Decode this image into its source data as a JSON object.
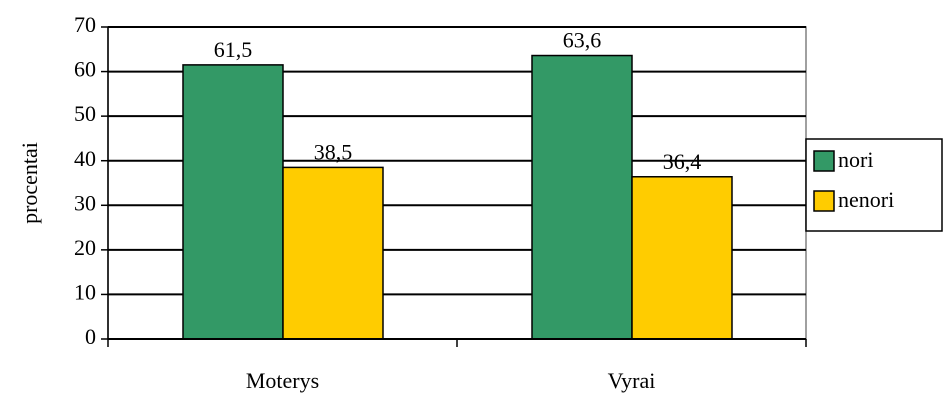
{
  "chart_data": {
    "type": "bar",
    "categories": [
      "Moterys",
      "Vyrai"
    ],
    "series": [
      {
        "name": "nori",
        "values": [
          61.5,
          63.6
        ],
        "color": "#339966"
      },
      {
        "name": "nenori",
        "values": [
          38.5,
          36.4
        ],
        "color": "#FFCC00"
      }
    ],
    "data_labels": [
      [
        "61,5",
        "63,6"
      ],
      [
        "38,5",
        "36,4"
      ]
    ],
    "ylabel": "procentai",
    "xlabel": "",
    "ylim": [
      0,
      70
    ],
    "yticks": [
      0,
      10,
      20,
      30,
      40,
      50,
      60,
      70
    ],
    "grid": true,
    "legend_position": "right"
  }
}
